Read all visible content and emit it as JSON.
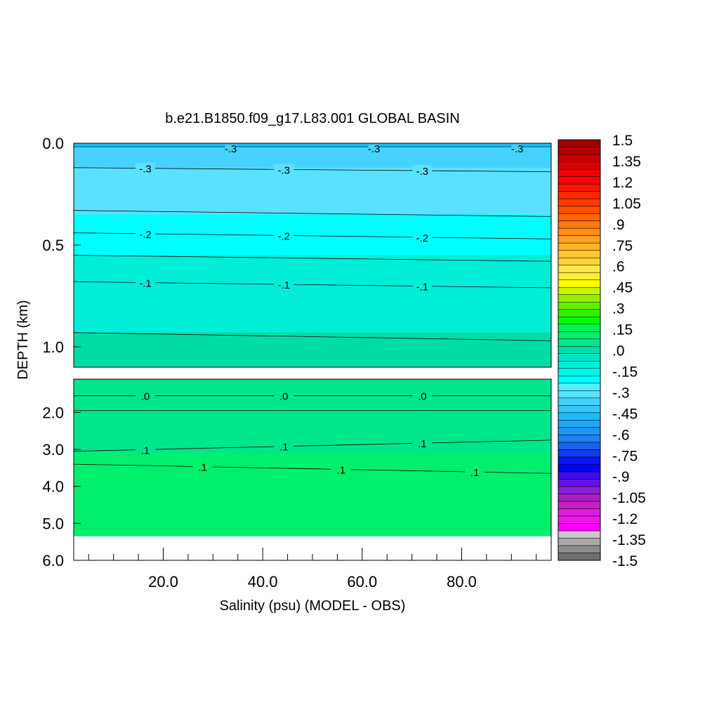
{
  "chart_data": {
    "type": "heatmap",
    "title": "b.e21.B1850.f09_g17.L83.001 GLOBAL BASIN",
    "xlabel": "Salinity (psu) (MODEL - OBS)",
    "ylabel": "DEPTH (km)",
    "x_range": [
      2,
      98
    ],
    "x_ticks": [
      20,
      40,
      60,
      80
    ],
    "x_tick_labels": [
      "20.0",
      "40.0",
      "60.0",
      "80.0"
    ],
    "upper_panel": {
      "ylim": [
        0.0,
        1.1
      ],
      "y_ticks": [
        0.0,
        0.5,
        1.0
      ],
      "y_tick_labels": [
        "0.0",
        "0.5",
        "1.0"
      ],
      "bands": [
        {
          "to": 0.02,
          "value": -0.45
        },
        {
          "to": 0.12,
          "value": -0.375
        },
        {
          "to": 0.35,
          "value": -0.3
        },
        {
          "to": 0.55,
          "value": -0.225
        },
        {
          "to": 0.93,
          "value": -0.1
        },
        {
          "to": 1.1,
          "value": 0.0
        }
      ],
      "contours": [
        {
          "depth_left": 0.12,
          "depth_right": 0.14,
          "label": "-.3"
        },
        {
          "depth_left": 0.33,
          "depth_right": 0.36,
          "label": ""
        },
        {
          "depth_left": 0.44,
          "depth_right": 0.47,
          "label": "-.2"
        },
        {
          "depth_left": 0.55,
          "depth_right": 0.58,
          "label": ""
        },
        {
          "depth_left": 0.68,
          "depth_right": 0.71,
          "label": "-.1"
        },
        {
          "depth_left": 0.93,
          "depth_right": 0.97,
          "label": ""
        }
      ],
      "surface_label": "-.3"
    },
    "lower_panel": {
      "ylim": [
        1.1,
        6.0
      ],
      "y_ticks": [
        2.0,
        3.0,
        4.0,
        5.0,
        6.0
      ],
      "y_tick_labels": [
        "2.0",
        "3.0",
        "4.0",
        "5.0",
        "6.0"
      ],
      "bottom_depth": 5.35,
      "bands": [
        {
          "to": 3.1,
          "value": 0.05
        },
        {
          "to": 3.4,
          "value": 0.125
        }
      ],
      "contours": [
        {
          "depth_left": 1.55,
          "depth_right": 1.55,
          "label": ".0"
        },
        {
          "depth_left": 1.95,
          "depth_right": 1.95,
          "label": ""
        },
        {
          "depth_left": 3.05,
          "depth_right": 2.75,
          "label": ".1"
        },
        {
          "depth_left": 3.4,
          "depth_right": 3.65,
          "label": ".1"
        }
      ]
    },
    "colorbar": {
      "min": -1.5,
      "max": 1.5,
      "labels": [
        "1.5",
        "1.35",
        "1.2",
        "1.05",
        ".9",
        ".75",
        ".6",
        ".45",
        ".3",
        ".15",
        ".0",
        "-.15",
        "-.3",
        "-.45",
        "-.6",
        "-.75",
        "-.9",
        "-1.05",
        "-1.2",
        "-1.35",
        "-1.5"
      ],
      "colors": [
        "#6e6e6e",
        "#8c8c8c",
        "#aaaaaa",
        "#c8c8c8",
        "#ff00ff",
        "#f016ec",
        "#dc1edc",
        "#c81ec8",
        "#aa1ec8",
        "#8c1edc",
        "#6414e6",
        "#3c0af0",
        "#0000ff",
        "#0a14f5",
        "#0f3cf0",
        "#1464eb",
        "#1e82f0",
        "#1e96f5",
        "#1ea8f8",
        "#1ebaff",
        "#32c8ff",
        "#46d2ff",
        "#5ae1ff",
        "#50f0ff",
        "#00ffff",
        "#00f5ec",
        "#00edd8",
        "#00e6c4",
        "#00dca5",
        "#00e68c",
        "#00f06e",
        "#00f550",
        "#00ff00",
        "#32f000",
        "#64f000",
        "#96f000",
        "#c8f500",
        "#ffff00",
        "#ffee32",
        "#ffe646",
        "#ffd23c",
        "#ffc832",
        "#ffb428",
        "#ffa01e",
        "#ff8c14",
        "#ff780a",
        "#ff6400",
        "#ff5000",
        "#ff3c00",
        "#ff2800",
        "#ff1400",
        "#ff0000",
        "#f00000",
        "#dc0000",
        "#c80000",
        "#b40000",
        "#a00000"
      ]
    }
  }
}
